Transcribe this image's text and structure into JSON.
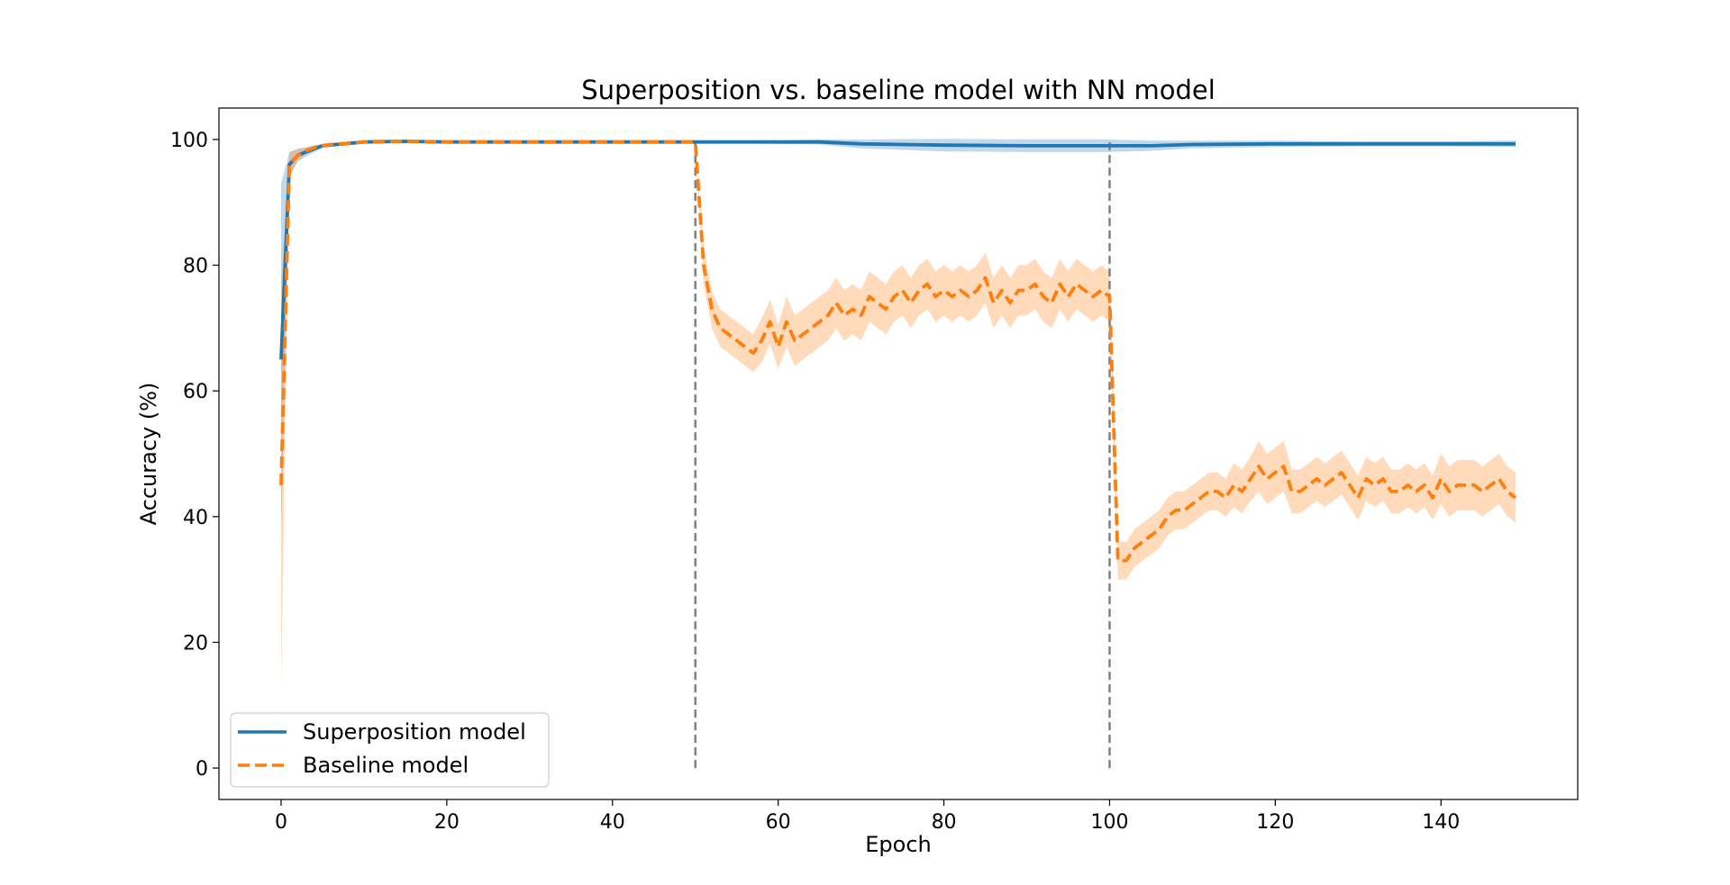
{
  "chart_data": {
    "type": "line",
    "title": "Superposition vs. baseline model with NN model",
    "xlabel": "Epoch",
    "ylabel": "Accuracy (%)",
    "xlim": [
      -7.5,
      156.5
    ],
    "ylim": [
      -5,
      105
    ],
    "xticks": [
      0,
      20,
      40,
      60,
      80,
      100,
      120,
      140
    ],
    "yticks": [
      0,
      20,
      40,
      60,
      80,
      100
    ],
    "grid": false,
    "legend_position": "lower-left",
    "vlines": [
      50,
      100
    ],
    "series": [
      {
        "name": "Superposition model",
        "color": "#1f77b4",
        "style": "solid",
        "x": [
          0,
          1,
          2,
          5,
          10,
          15,
          20,
          30,
          40,
          50,
          60,
          65,
          70,
          80,
          90,
          100,
          105,
          110,
          120,
          130,
          140,
          149
        ],
        "y": [
          65,
          96,
          97.5,
          99,
          99.6,
          99.7,
          99.6,
          99.6,
          99.6,
          99.6,
          99.6,
          99.6,
          99.3,
          99.1,
          99.0,
          99.0,
          99.0,
          99.2,
          99.3,
          99.3,
          99.3,
          99.3
        ],
        "band_halfwidth": [
          28,
          2,
          1,
          0.3,
          0.2,
          0.2,
          0.2,
          0.2,
          0.2,
          0.2,
          0.3,
          0.4,
          0.7,
          1.0,
          1.0,
          1.0,
          0.8,
          0.6,
          0.5,
          0.4,
          0.4,
          0.5
        ]
      },
      {
        "name": "Baseline model",
        "color": "#ff7f0e",
        "style": "dashed",
        "x": [
          0,
          1,
          2,
          3,
          4,
          5,
          6,
          7,
          8,
          9,
          10,
          12,
          14,
          16,
          18,
          20,
          22,
          24,
          26,
          28,
          30,
          32,
          34,
          36,
          38,
          40,
          42,
          44,
          46,
          48,
          50,
          51,
          52,
          53,
          54,
          55,
          56,
          57,
          58,
          59,
          60,
          61,
          62,
          63,
          64,
          65,
          66,
          67,
          68,
          69,
          70,
          71,
          72,
          73,
          74,
          75,
          76,
          77,
          78,
          79,
          80,
          81,
          82,
          83,
          84,
          85,
          86,
          87,
          88,
          89,
          90,
          91,
          92,
          93,
          94,
          95,
          96,
          97,
          98,
          99,
          100,
          101,
          102,
          103,
          104,
          105,
          106,
          107,
          108,
          109,
          110,
          111,
          112,
          113,
          114,
          115,
          116,
          117,
          118,
          119,
          120,
          121,
          122,
          123,
          124,
          125,
          126,
          127,
          128,
          129,
          130,
          131,
          132,
          133,
          134,
          135,
          136,
          137,
          138,
          139,
          140,
          141,
          142,
          143,
          144,
          145,
          146,
          147,
          148,
          149
        ],
        "y": [
          45,
          96,
          97.5,
          98.2,
          98.7,
          99.0,
          99.2,
          99.3,
          99.4,
          99.5,
          99.6,
          99.7,
          99.7,
          99.7,
          99.6,
          99.6,
          99.6,
          99.6,
          99.6,
          99.6,
          99.6,
          99.6,
          99.6,
          99.6,
          99.6,
          99.6,
          99.6,
          99.6,
          99.6,
          99.6,
          99.6,
          80,
          73,
          70,
          69,
          68,
          67,
          66,
          68,
          71,
          67,
          71,
          68,
          69,
          70,
          71,
          72,
          74,
          72,
          73,
          72,
          75,
          74,
          73,
          75,
          76,
          74,
          76,
          77,
          75,
          76,
          75,
          76,
          75,
          76,
          78,
          74,
          76,
          74,
          76,
          76,
          77,
          75,
          74,
          77,
          75,
          77,
          76,
          75,
          76,
          75,
          33,
          33,
          35,
          36,
          37,
          38,
          40,
          41,
          41,
          42,
          43,
          44,
          44,
          43,
          45,
          44,
          46,
          48,
          46,
          47,
          48,
          44,
          44,
          45,
          46,
          45,
          46,
          47,
          45,
          43,
          46,
          45,
          46,
          44,
          44,
          45,
          44,
          45,
          43,
          46,
          44,
          45,
          45,
          45,
          44,
          45,
          46,
          44,
          43
        ],
        "band_halfwidth": [
          32,
          2,
          1,
          0.5,
          0.4,
          0.3,
          0.3,
          0.2,
          0.2,
          0.2,
          0.2,
          0.2,
          0.2,
          0.2,
          0.2,
          0.2,
          0.2,
          0.2,
          0.2,
          0.2,
          0.2,
          0.2,
          0.2,
          0.2,
          0.2,
          0.2,
          0.2,
          0.2,
          0.2,
          0.2,
          0.2,
          3,
          3,
          3,
          3,
          3,
          3,
          3,
          3.5,
          3.5,
          3.5,
          4,
          4,
          4,
          4,
          4,
          4,
          4,
          4,
          4,
          4,
          4,
          4,
          4,
          4,
          4,
          4,
          4,
          4,
          4,
          4,
          4,
          4,
          4,
          4,
          4,
          4,
          4,
          4,
          4,
          4,
          4,
          4,
          4,
          4,
          4,
          4,
          4,
          4,
          4,
          4,
          3,
          3,
          3,
          3,
          3,
          3,
          3,
          3,
          3,
          3,
          3,
          3,
          3,
          3,
          3.5,
          3.5,
          3.5,
          4,
          4,
          4,
          4,
          3.5,
          3.5,
          3.5,
          3.5,
          3.5,
          3.5,
          3.5,
          3.5,
          3.5,
          3.5,
          3.5,
          3.5,
          3.5,
          3.5,
          3.5,
          3.5,
          3.5,
          3.5,
          4,
          4,
          4,
          4,
          4,
          4,
          4,
          4,
          4,
          4
        ]
      }
    ]
  }
}
